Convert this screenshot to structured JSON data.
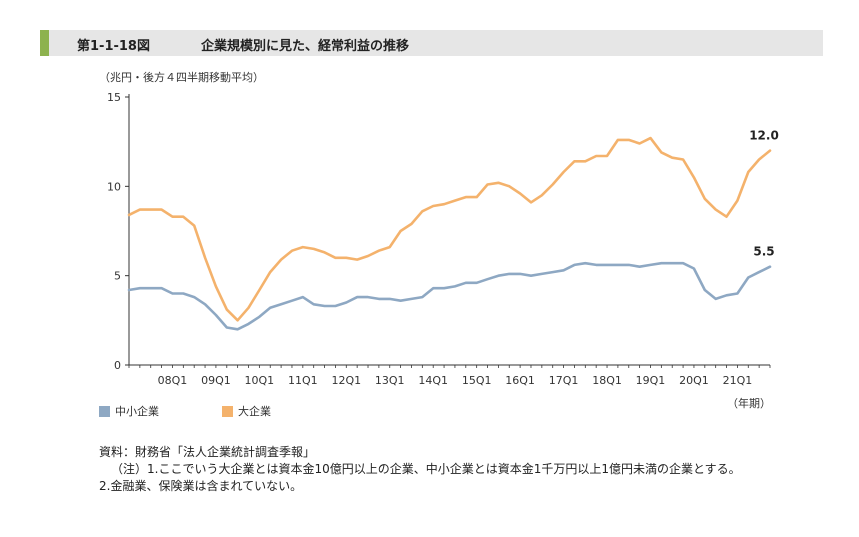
{
  "header": {
    "figure_number": "第1-1-18図",
    "title": "企業規模別に見た、経常利益の推移"
  },
  "colors": {
    "small": "#8ea8c3",
    "large": "#f4b26c",
    "accent": "#8db24e"
  },
  "chart_data": {
    "type": "line",
    "unit_label": "（兆円・後方４四半期移動平均）",
    "x_unit_label": "（年期）",
    "ylim": [
      0,
      15
    ],
    "y_ticks": [
      "0",
      "5",
      "10",
      "15"
    ],
    "x_tick_labels": [
      "08Q1",
      "09Q1",
      "10Q1",
      "11Q1",
      "12Q1",
      "13Q1",
      "14Q1",
      "15Q1",
      "16Q1",
      "17Q1",
      "18Q1",
      "19Q1",
      "20Q1",
      "21Q1"
    ],
    "x_tick_quarter_index": [
      4,
      8,
      12,
      16,
      20,
      24,
      28,
      32,
      36,
      40,
      44,
      48,
      52,
      56
    ],
    "grid": false,
    "legend_position": "bottom-left",
    "series": [
      {
        "name": "中小企業",
        "color": "#8ea8c3",
        "end_label": "5.5",
        "values": [
          4.2,
          4.3,
          4.3,
          4.3,
          4.0,
          4.0,
          3.8,
          3.4,
          2.8,
          2.1,
          2.0,
          2.3,
          2.7,
          3.2,
          3.4,
          3.6,
          3.8,
          3.4,
          3.3,
          3.3,
          3.5,
          3.8,
          3.8,
          3.7,
          3.7,
          3.6,
          3.7,
          3.8,
          4.3,
          4.3,
          4.4,
          4.6,
          4.6,
          4.8,
          5.0,
          5.1,
          5.1,
          5.0,
          5.1,
          5.2,
          5.3,
          5.6,
          5.7,
          5.6,
          5.6,
          5.6,
          5.6,
          5.5,
          5.6,
          5.7,
          5.7,
          5.7,
          5.4,
          4.2,
          3.7,
          3.9,
          4.0,
          4.9,
          5.2,
          5.5
        ]
      },
      {
        "name": "大企業",
        "color": "#f4b26c",
        "end_label": "12.0",
        "values": [
          8.4,
          8.7,
          8.7,
          8.7,
          8.3,
          8.3,
          7.8,
          6.0,
          4.4,
          3.1,
          2.5,
          3.2,
          4.2,
          5.2,
          5.9,
          6.4,
          6.6,
          6.5,
          6.3,
          6.0,
          6.0,
          5.9,
          6.1,
          6.4,
          6.6,
          7.5,
          7.9,
          8.6,
          8.9,
          9.0,
          9.2,
          9.4,
          9.4,
          10.1,
          10.2,
          10.0,
          9.6,
          9.1,
          9.5,
          10.1,
          10.8,
          11.4,
          11.4,
          11.7,
          11.7,
          12.6,
          12.6,
          12.4,
          12.7,
          11.9,
          11.6,
          11.5,
          10.5,
          9.3,
          8.7,
          8.3,
          9.2,
          10.8,
          11.5,
          12.0
        ]
      }
    ]
  },
  "legend": {
    "small_label": "中小企業",
    "large_label": "大企業"
  },
  "notes": {
    "source": "資料：財務省「法人企業統計調査季報」",
    "note1": "（注）1.ここでいう大企業とは資本金10億円以上の企業、中小企業とは資本金1千万円以上1億円未満の企業とする。",
    "note2": "2.金融業、保険業は含まれていない。"
  }
}
